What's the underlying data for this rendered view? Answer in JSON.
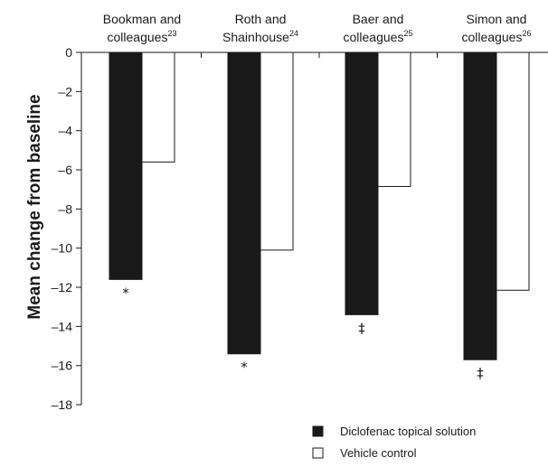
{
  "chart_data": {
    "type": "bar",
    "categories": [
      {
        "line1": "Bookman and",
        "line2": "colleagues",
        "ref": "23"
      },
      {
        "line1": "Roth and",
        "line2": "Shainhouse",
        "ref": "24"
      },
      {
        "line1": "Baer and",
        "line2": "colleagues",
        "ref": "25"
      },
      {
        "line1": "Simon and",
        "line2": "colleagues",
        "ref": "26"
      }
    ],
    "series": [
      {
        "name": "Diclofenac topical solution",
        "color": "#1a1a1a",
        "values": [
          -11.6,
          -15.4,
          -13.4,
          -15.7
        ],
        "significance": [
          "*",
          "*",
          "‡",
          "‡"
        ]
      },
      {
        "name": "Vehicle control",
        "color": "#ffffff",
        "values": [
          -5.6,
          -10.1,
          -6.85,
          -12.15
        ]
      }
    ],
    "ylabel": "Mean change from baseline",
    "ylim": [
      -18,
      0
    ],
    "yticks": [
      "0",
      "–2",
      "–4",
      "–6",
      "–8",
      "–10",
      "–12",
      "–14",
      "–16",
      "–18"
    ],
    "ytick_values": [
      0,
      -2,
      -4,
      -6,
      -8,
      -10,
      -12,
      -14,
      -16,
      -18
    ],
    "grid": false,
    "legend_position": "bottom-right"
  }
}
